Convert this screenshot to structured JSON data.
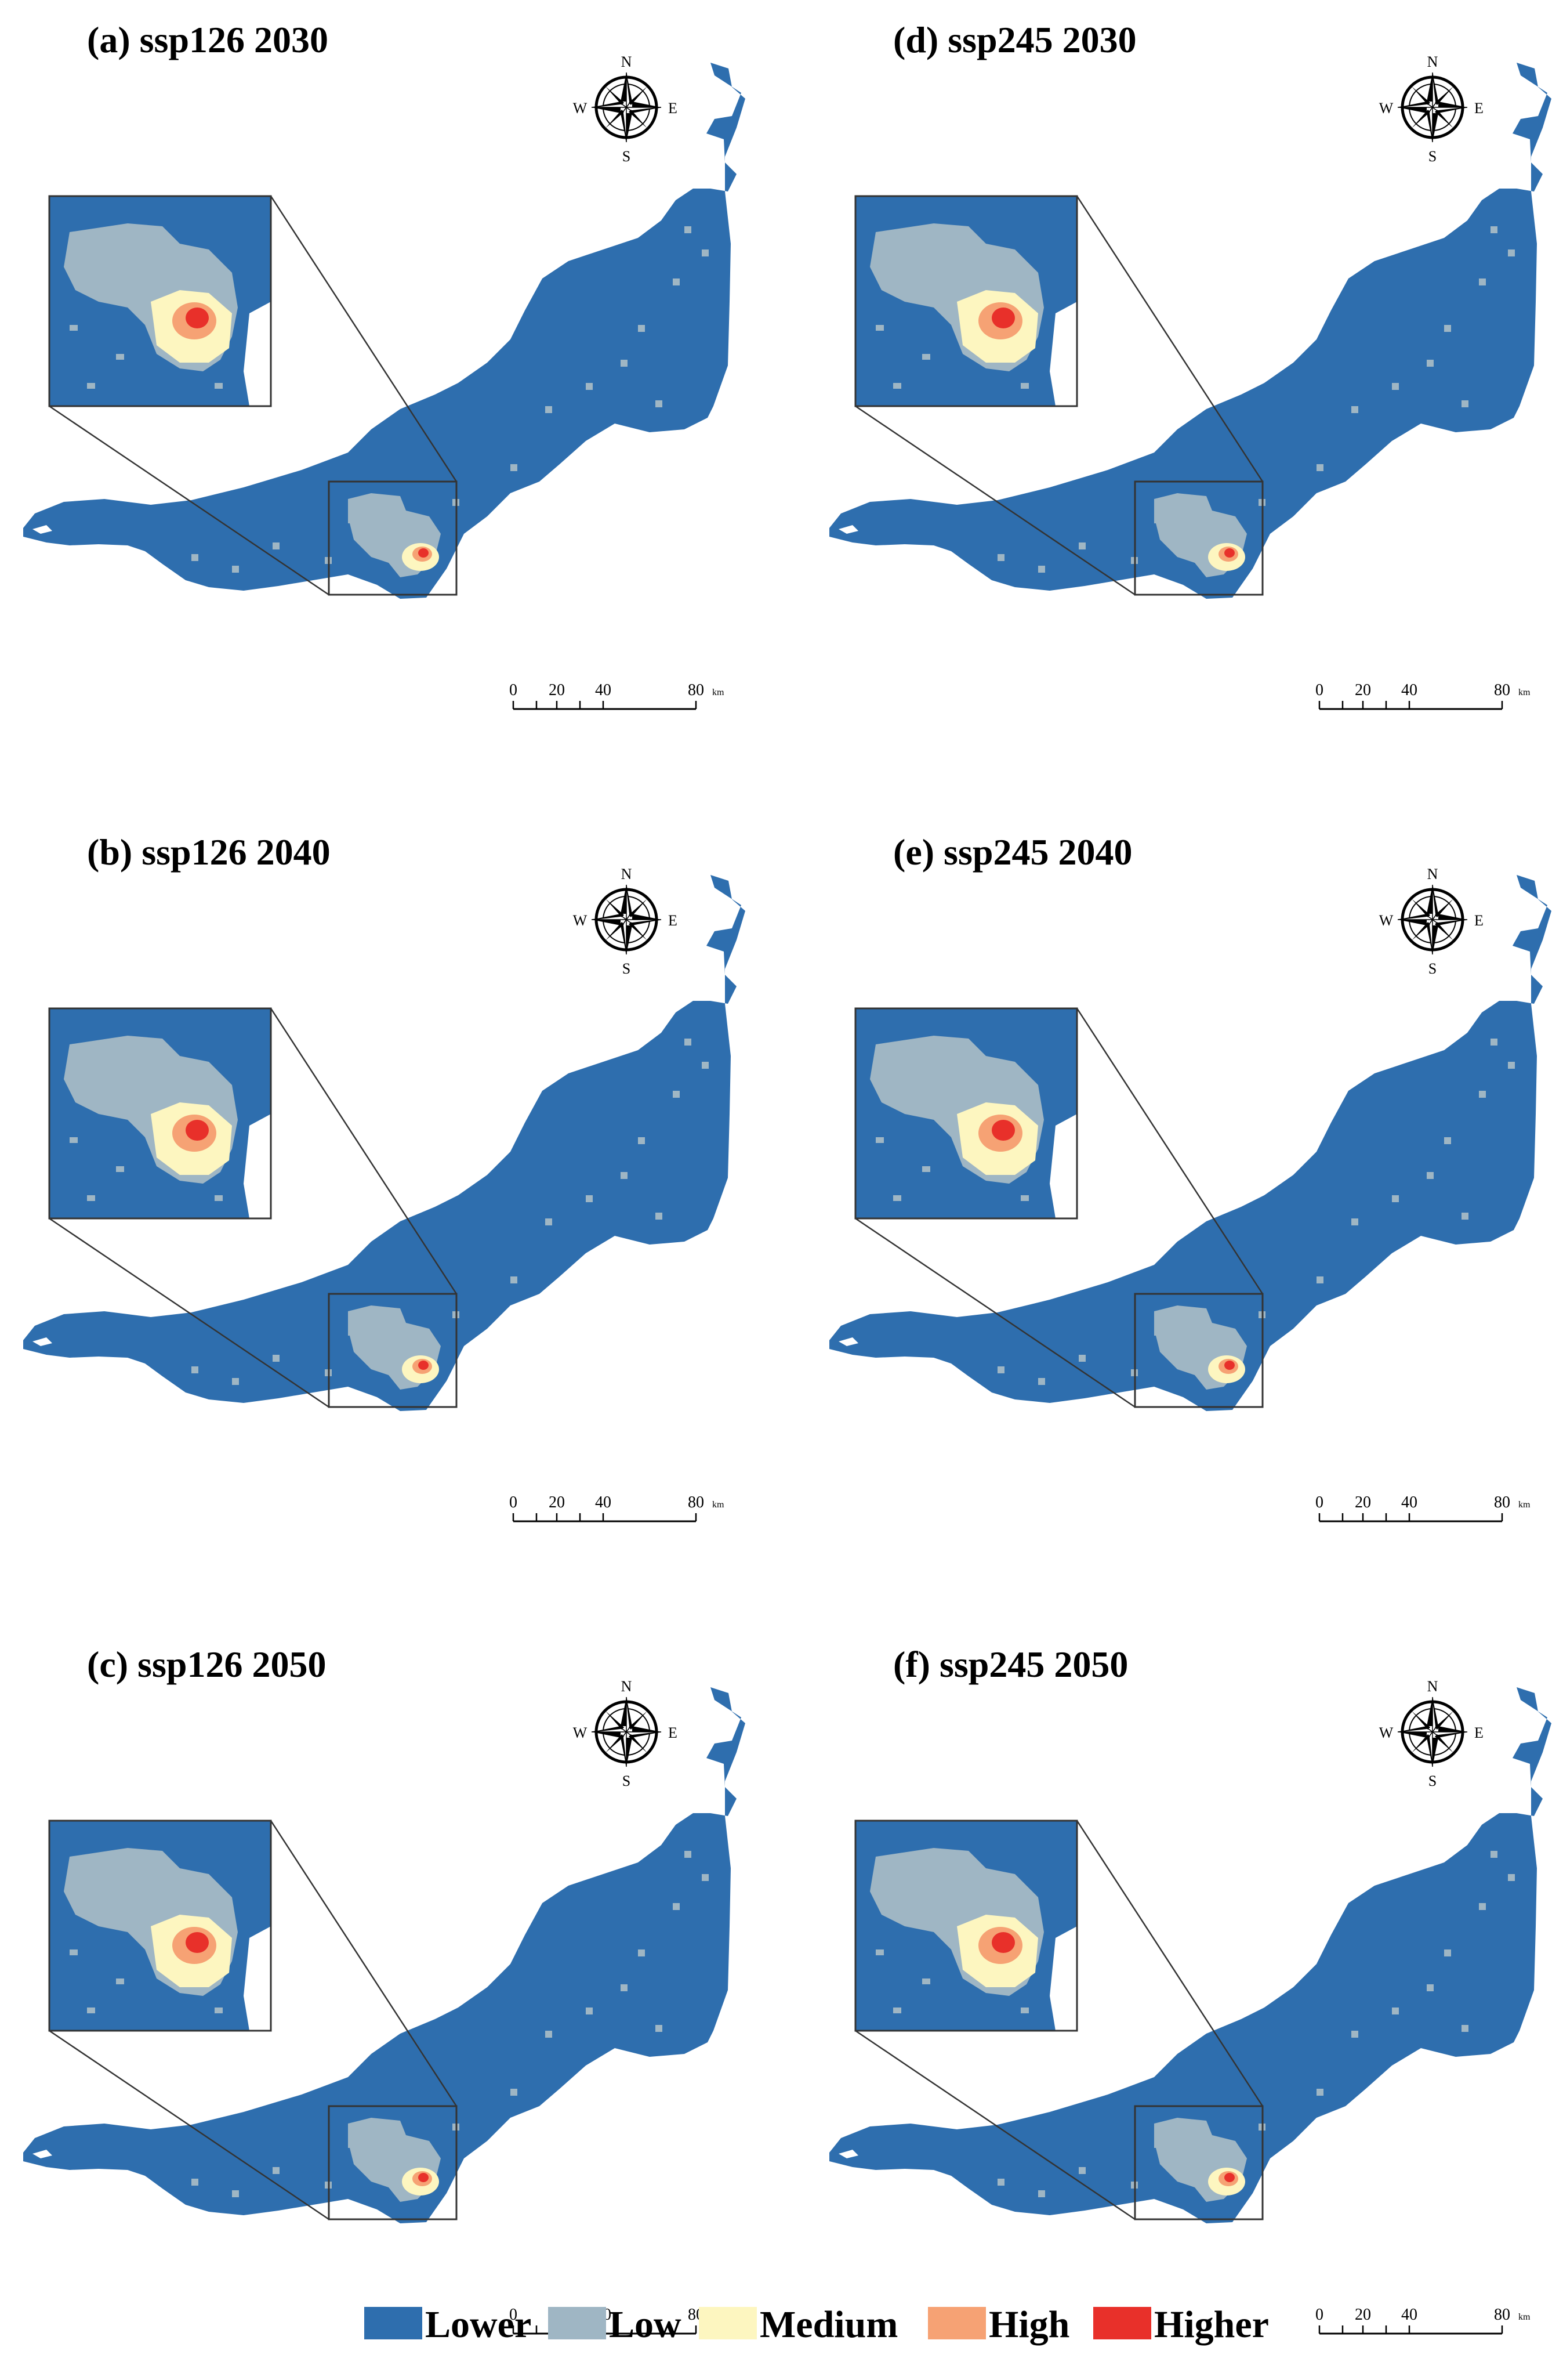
{
  "panels": [
    {
      "title": "(a) ssp126 2030"
    },
    {
      "title": "(b) ssp126 2040"
    },
    {
      "title": "(c) ssp126 2050"
    },
    {
      "title": "(d) ssp245 2030"
    },
    {
      "title": "(e) ssp245 2040"
    },
    {
      "title": "(f) ssp245 2050"
    }
  ],
  "compass": {
    "n": "N",
    "s": "S",
    "w": "W",
    "e": "E"
  },
  "scale_bar": {
    "ticks": [
      "0",
      "20",
      "40",
      "80"
    ],
    "unit": "km"
  },
  "legend": {
    "items": [
      {
        "label": "Lower",
        "color": "#2e6eae"
      },
      {
        "label": "Low",
        "color": "#9fb6c4"
      },
      {
        "label": "Medium",
        "color": "#fdf6c0"
      },
      {
        "label": "High",
        "color": "#f6a274"
      },
      {
        "label": "Higher",
        "color": "#e8302a"
      }
    ]
  },
  "colors": {
    "background": "#ffffff",
    "outline": "#333333"
  }
}
